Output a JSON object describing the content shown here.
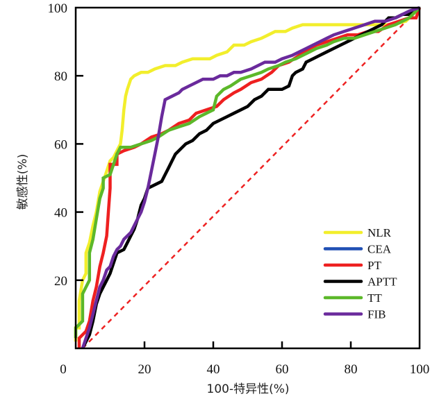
{
  "chart_data": {
    "type": "line",
    "title": "",
    "xlabel": "100-特异性(%)",
    "ylabel": "敏感性(%)",
    "xlim": [
      0,
      100
    ],
    "ylim": [
      0,
      100
    ],
    "xticks": [
      0,
      20,
      40,
      60,
      80,
      100
    ],
    "yticks": [
      20,
      40,
      60,
      80,
      100
    ],
    "x_tick_labels": [
      "0",
      "20",
      "40",
      "60",
      "80",
      "100"
    ],
    "y_tick_labels": [
      "20",
      "40",
      "60",
      "80",
      "100"
    ],
    "grid": false,
    "legend_placement": "bottom-right",
    "reference_line": {
      "name": "diagonal",
      "color": "#ee2222",
      "style": "dashed",
      "points": [
        [
          2,
          0
        ],
        [
          100,
          100
        ]
      ]
    },
    "series": [
      {
        "name": "NLR",
        "color": "#f2ee2c",
        "points": [
          [
            0,
            2
          ],
          [
            0,
            6
          ],
          [
            1,
            6
          ],
          [
            1,
            14
          ],
          [
            2,
            20
          ],
          [
            3,
            22
          ],
          [
            3,
            28
          ],
          [
            4,
            31
          ],
          [
            5,
            36
          ],
          [
            6,
            40
          ],
          [
            7,
            46
          ],
          [
            8,
            49
          ],
          [
            9,
            52
          ],
          [
            10,
            55
          ],
          [
            11,
            56
          ],
          [
            12,
            58
          ],
          [
            13,
            60
          ],
          [
            13.5,
            64
          ],
          [
            14,
            70
          ],
          [
            14.5,
            74
          ],
          [
            15,
            76
          ],
          [
            16,
            79
          ],
          [
            17,
            80
          ],
          [
            19,
            81
          ],
          [
            21,
            81
          ],
          [
            23,
            82
          ],
          [
            26,
            83
          ],
          [
            29,
            83
          ],
          [
            31,
            84
          ],
          [
            34,
            85
          ],
          [
            39,
            85
          ],
          [
            41,
            86
          ],
          [
            44,
            87
          ],
          [
            46,
            89
          ],
          [
            49,
            89
          ],
          [
            51,
            90
          ],
          [
            54,
            91
          ],
          [
            56,
            92
          ],
          [
            58,
            93
          ],
          [
            61,
            93
          ],
          [
            63,
            94
          ],
          [
            66,
            95
          ],
          [
            80,
            95
          ],
          [
            92,
            95
          ],
          [
            96,
            96
          ],
          [
            100,
            100
          ]
        ]
      },
      {
        "name": "CEA",
        "color": "#1f4fb4",
        "points": []
      },
      {
        "name": "PT",
        "color": "#ee2020",
        "points": [
          [
            1,
            0
          ],
          [
            1,
            3
          ],
          [
            2,
            4
          ],
          [
            3,
            5
          ],
          [
            4,
            8
          ],
          [
            5,
            14
          ],
          [
            6,
            18
          ],
          [
            7,
            24
          ],
          [
            8,
            28
          ],
          [
            9,
            33
          ],
          [
            9.5,
            40
          ],
          [
            10,
            47
          ],
          [
            10,
            54
          ],
          [
            12,
            54
          ],
          [
            12,
            57
          ],
          [
            14,
            58
          ],
          [
            17,
            59
          ],
          [
            19,
            60
          ],
          [
            22,
            62
          ],
          [
            25,
            63
          ],
          [
            27,
            64
          ],
          [
            30,
            66
          ],
          [
            33,
            67
          ],
          [
            35,
            69
          ],
          [
            38,
            70
          ],
          [
            41,
            71
          ],
          [
            43,
            73
          ],
          [
            46,
            75
          ],
          [
            48,
            76
          ],
          [
            51,
            78
          ],
          [
            54,
            79
          ],
          [
            57,
            81
          ],
          [
            59,
            83
          ],
          [
            62,
            84
          ],
          [
            65,
            86
          ],
          [
            68,
            88
          ],
          [
            70,
            89
          ],
          [
            73,
            90
          ],
          [
            76,
            91
          ],
          [
            79,
            92
          ],
          [
            82,
            92
          ],
          [
            85,
            93
          ],
          [
            88,
            93
          ],
          [
            91,
            95
          ],
          [
            94,
            96
          ],
          [
            97,
            97
          ],
          [
            99,
            97
          ],
          [
            100,
            100
          ]
        ]
      },
      {
        "name": "APTT",
        "color": "#000000",
        "points": [
          [
            2,
            0
          ],
          [
            3,
            2
          ],
          [
            4,
            4
          ],
          [
            5,
            8
          ],
          [
            6,
            13
          ],
          [
            7,
            16
          ],
          [
            8,
            18
          ],
          [
            9,
            20
          ],
          [
            10,
            22
          ],
          [
            11,
            25
          ],
          [
            12,
            28
          ],
          [
            14,
            29
          ],
          [
            15,
            31
          ],
          [
            16,
            33
          ],
          [
            17,
            35
          ],
          [
            18,
            38
          ],
          [
            19,
            42
          ],
          [
            20,
            44
          ],
          [
            21,
            47
          ],
          [
            23,
            48
          ],
          [
            25,
            49
          ],
          [
            26,
            51
          ],
          [
            27,
            53
          ],
          [
            28,
            55
          ],
          [
            29,
            57
          ],
          [
            31,
            59
          ],
          [
            32,
            60
          ],
          [
            34,
            61
          ],
          [
            36,
            63
          ],
          [
            38,
            64
          ],
          [
            40,
            66
          ],
          [
            42,
            67
          ],
          [
            44,
            68
          ],
          [
            46,
            69
          ],
          [
            48,
            70
          ],
          [
            50,
            71
          ],
          [
            52,
            73
          ],
          [
            54,
            74
          ],
          [
            56,
            76
          ],
          [
            60,
            76
          ],
          [
            62,
            77
          ],
          [
            63,
            80
          ],
          [
            64,
            81
          ],
          [
            66,
            82
          ],
          [
            67,
            84
          ],
          [
            69,
            85
          ],
          [
            71,
            86
          ],
          [
            73,
            87
          ],
          [
            75,
            88
          ],
          [
            77,
            89
          ],
          [
            79,
            90
          ],
          [
            81,
            91
          ],
          [
            83,
            92
          ],
          [
            85,
            93
          ],
          [
            87,
            94
          ],
          [
            89,
            95
          ],
          [
            91,
            97
          ],
          [
            93,
            97
          ],
          [
            95,
            98
          ],
          [
            97,
            98
          ],
          [
            99,
            99
          ],
          [
            100,
            100
          ]
        ]
      },
      {
        "name": "TT",
        "color": "#5cb82a",
        "points": [
          [
            0,
            3
          ],
          [
            0,
            6
          ],
          [
            1,
            7
          ],
          [
            2,
            8
          ],
          [
            2,
            16
          ],
          [
            3,
            18
          ],
          [
            4,
            20
          ],
          [
            4,
            28
          ],
          [
            5,
            32
          ],
          [
            6,
            38
          ],
          [
            7,
            44
          ],
          [
            8,
            47
          ],
          [
            8,
            50
          ],
          [
            10,
            51
          ],
          [
            11,
            54
          ],
          [
            12,
            57
          ],
          [
            13,
            59
          ],
          [
            16,
            59
          ],
          [
            19,
            60
          ],
          [
            22,
            61
          ],
          [
            24,
            62
          ],
          [
            27,
            64
          ],
          [
            30,
            65
          ],
          [
            33,
            66
          ],
          [
            36,
            68
          ],
          [
            38,
            69
          ],
          [
            40,
            70
          ],
          [
            41,
            74
          ],
          [
            43,
            76
          ],
          [
            45,
            77
          ],
          [
            48,
            79
          ],
          [
            51,
            80
          ],
          [
            54,
            81
          ],
          [
            56,
            82
          ],
          [
            59,
            83
          ],
          [
            61,
            84
          ],
          [
            64,
            85
          ],
          [
            66,
            86
          ],
          [
            68,
            87
          ],
          [
            70,
            88
          ],
          [
            73,
            89
          ],
          [
            75,
            90
          ],
          [
            78,
            91
          ],
          [
            81,
            91
          ],
          [
            84,
            92
          ],
          [
            87,
            93
          ],
          [
            90,
            94
          ],
          [
            93,
            95
          ],
          [
            95,
            96
          ],
          [
            97,
            97
          ],
          [
            100,
            100
          ]
        ]
      },
      {
        "name": "FIB",
        "color": "#6a2a9c",
        "points": [
          [
            2,
            0
          ],
          [
            3,
            3
          ],
          [
            4,
            6
          ],
          [
            5,
            10
          ],
          [
            6,
            14
          ],
          [
            7,
            18
          ],
          [
            8,
            20
          ],
          [
            9,
            23
          ],
          [
            10,
            24
          ],
          [
            11,
            27
          ],
          [
            12,
            29
          ],
          [
            13,
            30
          ],
          [
            14,
            32
          ],
          [
            16,
            34
          ],
          [
            17,
            36
          ],
          [
            18,
            38
          ],
          [
            19,
            40
          ],
          [
            20,
            43
          ],
          [
            21,
            47
          ],
          [
            22,
            52
          ],
          [
            23,
            57
          ],
          [
            24,
            62
          ],
          [
            25,
            68
          ],
          [
            26,
            73
          ],
          [
            28,
            74
          ],
          [
            30,
            75
          ],
          [
            31,
            76
          ],
          [
            33,
            77
          ],
          [
            35,
            78
          ],
          [
            37,
            79
          ],
          [
            40,
            79
          ],
          [
            42,
            80
          ],
          [
            44,
            80
          ],
          [
            46,
            81
          ],
          [
            48,
            81
          ],
          [
            51,
            82
          ],
          [
            53,
            83
          ],
          [
            55,
            84
          ],
          [
            58,
            84
          ],
          [
            60,
            85
          ],
          [
            63,
            86
          ],
          [
            65,
            87
          ],
          [
            67,
            88
          ],
          [
            69,
            89
          ],
          [
            71,
            90
          ],
          [
            73,
            91
          ],
          [
            75,
            92
          ],
          [
            78,
            93
          ],
          [
            81,
            94
          ],
          [
            84,
            95
          ],
          [
            87,
            96
          ],
          [
            90,
            96
          ],
          [
            93,
            97
          ],
          [
            95,
            98
          ],
          [
            97,
            99
          ],
          [
            100,
            100
          ]
        ]
      }
    ]
  }
}
